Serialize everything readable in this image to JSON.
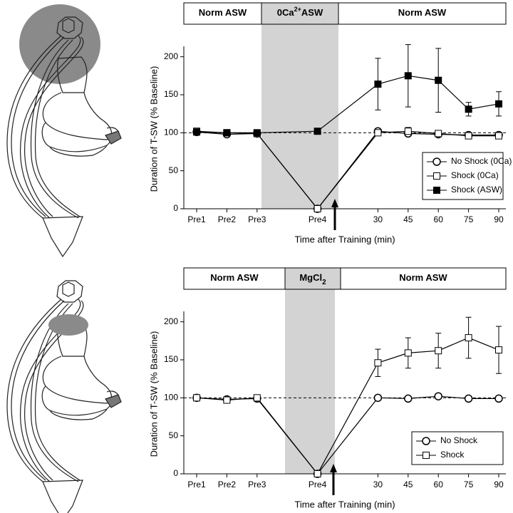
{
  "chart_data": [
    {
      "type": "line",
      "conditions": [
        {
          "label": "Norm ASW"
        },
        {
          "label": "0Ca",
          "sup": "2+",
          "suffix": "ASW"
        },
        {
          "label": "Norm ASW"
        }
      ],
      "y_label": "Duration of T-SW (% Baseline)",
      "x_label": "Time after Training (min)",
      "categories": [
        "Pre1",
        "Pre2",
        "Pre3",
        "Pre4",
        "30",
        "45",
        "60",
        "75",
        "90"
      ],
      "ylim": [
        0,
        210
      ],
      "yticks": [
        0,
        50,
        100,
        150,
        200
      ],
      "reference_line": 100,
      "legend": "lower right",
      "series": [
        {
          "name": "No Shock (0Ca)",
          "color": "#000000",
          "marker": "circle",
          "marker_fill": "#ffffff",
          "values": [
            101,
            98,
            99,
            0,
            102,
            99,
            98,
            97,
            97
          ],
          "errors": [
            2,
            2,
            2,
            0,
            2,
            3,
            2,
            2,
            2
          ]
        },
        {
          "name": "Shock (0Ca)",
          "color": "#000000",
          "marker": "square",
          "marker_fill": "#ffffff",
          "values": [
            102,
            100,
            99,
            0,
            100,
            102,
            99,
            96,
            96
          ],
          "errors": [
            2,
            2,
            2,
            0,
            3,
            5,
            3,
            3,
            3
          ]
        },
        {
          "name": "Shock (ASW)",
          "color": "#000000",
          "marker": "square",
          "marker_fill": "#000000",
          "values": [
            101,
            100,
            100,
            102,
            164,
            175,
            169,
            131,
            138
          ],
          "errors": [
            2,
            2,
            2,
            2,
            34,
            41,
            42,
            9,
            16
          ]
        }
      ]
    },
    {
      "type": "line",
      "conditions": [
        {
          "label": "Norm ASW"
        },
        {
          "label": "MgCl",
          "sub": "2"
        },
        {
          "label": "Norm ASW"
        }
      ],
      "y_label": "Duration of T-SW (% Baseline)",
      "x_label": "Time after Training (min)",
      "categories": [
        "Pre1",
        "Pre2",
        "Pre3",
        "Pre4",
        "30",
        "45",
        "60",
        "75",
        "90"
      ],
      "ylim": [
        0,
        210
      ],
      "yticks": [
        0,
        50,
        100,
        150,
        200
      ],
      "reference_line": 100,
      "legend": "lower right",
      "series": [
        {
          "name": "No Shock",
          "color": "#000000",
          "marker": "circle",
          "marker_fill": "#ffffff",
          "values": [
            100,
            98,
            99,
            0,
            100,
            99,
            102,
            99,
            99
          ],
          "errors": [
            2,
            2,
            2,
            0,
            2,
            2,
            2,
            2,
            2
          ]
        },
        {
          "name": "Shock",
          "color": "#000000",
          "marker": "square",
          "marker_fill": "#ffffff",
          "values": [
            100,
            97,
            100,
            0,
            146,
            159,
            162,
            179,
            163
          ],
          "errors": [
            2,
            2,
            2,
            0,
            18,
            20,
            23,
            27,
            31
          ]
        }
      ]
    }
  ]
}
